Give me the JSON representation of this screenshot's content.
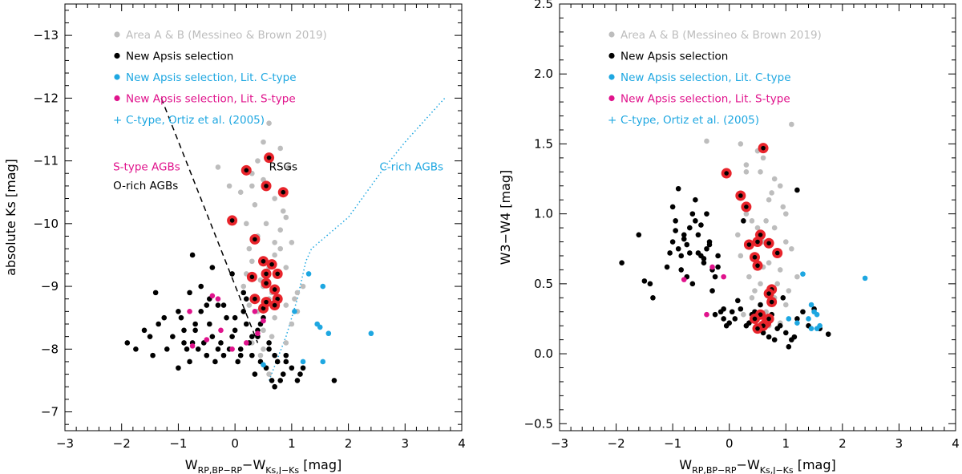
{
  "colors": {
    "area_ab": "#bdbdbd",
    "new": "#000000",
    "ctype": "#1ea7e1",
    "stype": "#e0138c",
    "highlight": "#e8242b"
  },
  "legend": [
    {
      "marker": "dot",
      "color": "#bdbdbd",
      "text": "Area A & B (Messineo & Brown 2019)"
    },
    {
      "marker": "dot",
      "color": "#000000",
      "text": "New Apsis selection"
    },
    {
      "marker": "dot",
      "color": "#1ea7e1",
      "text": "New Apsis selection, Lit. C-type"
    },
    {
      "marker": "dot",
      "color": "#e0138c",
      "text": "New Apsis selection, Lit. S-type"
    },
    {
      "marker": "plus",
      "color": "#1ea7e1",
      "text": "C-type, Ortiz et al. (2005)"
    }
  ],
  "chart_data": [
    {
      "type": "scatter",
      "id": "left",
      "xlabel_main": "W",
      "xlabel_sub1": "RP,BP−RP",
      "xlabel_mid": "−W",
      "xlabel_sub2": "Ks,J−Ks",
      "xlabel_unit": " [mag]",
      "ylabel": "absolute Ks [mag]",
      "xlim": [
        -3,
        4
      ],
      "ylim": [
        -6.7,
        -13.5
      ],
      "xticks": [
        -3,
        -2,
        -1,
        0,
        1,
        2,
        3,
        4
      ],
      "xtick_labels": [
        "−3",
        "−2",
        "−1",
        "0",
        "1",
        "2",
        "3",
        "4"
      ],
      "yticks": [
        -7,
        -8,
        -9,
        -10,
        -11,
        -12,
        -13
      ],
      "ytick_labels": [
        "−7",
        "−8",
        "−9",
        "−10",
        "−11",
        "−12",
        "−13"
      ],
      "annotations": [
        {
          "text": "S-type AGBs",
          "x": -2.15,
          "y": -10.85,
          "color": "#e0138c"
        },
        {
          "text": "O-rich AGBs",
          "x": -2.15,
          "y": -10.55,
          "color": "#000000"
        },
        {
          "text": "RSGs",
          "x": 0.6,
          "y": -10.85,
          "color": "#000000"
        },
        {
          "text": "C-rich AGBs",
          "x": 2.55,
          "y": -10.85,
          "color": "#1ea7e1"
        }
      ],
      "lines": [
        {
          "name": "o-rich-boundary",
          "style": "dashed",
          "color": "#000000",
          "x": [
            -1.3,
            0.4
          ],
          "y": [
            -12.0,
            -8.1
          ]
        },
        {
          "name": "c-rich-boundary",
          "style": "dotted",
          "color": "#1ea7e1",
          "x": [
            0.6,
            0.9,
            1.1,
            1.25,
            1.35,
            2.0,
            2.6,
            3.0,
            3.7
          ],
          "y": [
            -7.5,
            -8.2,
            -8.8,
            -9.4,
            -9.6,
            -10.1,
            -10.85,
            -11.3,
            -12.0
          ]
        }
      ],
      "series": [
        {
          "name": "Area A & B (Messineo & Brown 2019)",
          "color": "#bdbdbd",
          "x": [
            0.1,
            0.3,
            0.5,
            0.6,
            0.9,
            0.2,
            0.4,
            0.7,
            1.0,
            0.3,
            0.8,
            0.5,
            0.6,
            0.4,
            1.1,
            0.2,
            0.7,
            0.9,
            0.35,
            0.55,
            0.45,
            0.8,
            1.0,
            0.65,
            0.25,
            0.5,
            0.9,
            0.7,
            0.4,
            0.6,
            1.1,
            0.3,
            0.8,
            0.5,
            0.75,
            -0.3,
            -0.1,
            0.15,
            0.95,
            1.2,
            0.6,
            0.45,
            0.85,
            0.3,
            0.7,
            0.5,
            0.9,
            1.05,
            0.25,
            0.65
          ],
          "y": [
            -10.5,
            -10.8,
            -11.3,
            -11.6,
            -10.1,
            -10.0,
            -9.8,
            -10.4,
            -9.7,
            -9.4,
            -9.6,
            -9.0,
            -8.8,
            -8.6,
            -8.9,
            -9.2,
            -8.5,
            -8.7,
            -10.3,
            -10.0,
            -9.1,
            -9.9,
            -8.4,
            -8.2,
            -8.7,
            -8.3,
            -8.1,
            -9.5,
            -11.0,
            -9.3,
            -8.6,
            -10.6,
            -11.2,
            -8.0,
            -7.8,
            -10.9,
            -10.6,
            -9.0,
            -10.9,
            -9.0,
            -7.6,
            -7.9,
            -10.2,
            -8.1,
            -9.7,
            -10.7,
            -9.3,
            -8.8,
            -9.6,
            -8.9
          ]
        },
        {
          "name": "New Apsis selection",
          "color": "#000000",
          "x": [
            -1.9,
            -1.75,
            -1.6,
            -1.5,
            -1.45,
            -1.4,
            -1.35,
            -1.2,
            -1.1,
            -1.0,
            -0.95,
            -0.9,
            -0.85,
            -0.8,
            -0.75,
            -0.7,
            -0.65,
            -0.6,
            -0.55,
            -0.5,
            -0.45,
            -0.4,
            -0.35,
            -0.3,
            -0.25,
            -0.2,
            -0.15,
            -0.1,
            -0.05,
            0.0,
            0.05,
            0.1,
            0.15,
            0.2,
            0.25,
            0.3,
            0.35,
            0.4,
            0.45,
            0.5,
            0.55,
            0.6,
            0.65,
            0.7,
            0.75,
            0.8,
            0.85,
            0.9,
            1.0,
            1.1,
            1.2,
            -0.8,
            -0.6,
            -0.4,
            -0.2,
            0.0,
            0.2,
            0.4,
            -1.0,
            -0.7,
            -0.3,
            0.1,
            0.3,
            0.6,
            0.9,
            1.15,
            -0.5,
            -0.9,
            1.75,
            -1.25,
            -0.75,
            -0.45,
            -0.05,
            0.15,
            0.45,
            0.7
          ],
          "y": [
            -8.1,
            -8.0,
            -8.3,
            -8.2,
            -7.9,
            -8.9,
            -8.4,
            -8.0,
            -8.2,
            -7.7,
            -8.5,
            -8.1,
            -8.0,
            -7.8,
            -9.5,
            -8.3,
            -8.0,
            -8.6,
            -8.1,
            -7.9,
            -8.4,
            -8.2,
            -7.8,
            -8.7,
            -8.1,
            -7.9,
            -8.5,
            -8.0,
            -8.2,
            -8.3,
            -7.8,
            -8.0,
            -8.9,
            -8.4,
            -8.1,
            -7.9,
            -7.6,
            -8.2,
            -7.8,
            -8.5,
            -7.7,
            -8.0,
            -7.5,
            -7.4,
            -7.8,
            -7.5,
            -7.6,
            -7.8,
            -7.7,
            -7.5,
            -7.7,
            -8.9,
            -9.0,
            -9.3,
            -8.7,
            -8.5,
            -8.8,
            -8.3,
            -8.6,
            -8.4,
            -8.0,
            -7.9,
            -8.2,
            -8.1,
            -7.9,
            -7.6,
            -8.7,
            -8.3,
            -7.5,
            -8.5,
            -8.1,
            -8.8,
            -9.2,
            -8.6,
            -8.4,
            -7.9
          ]
        },
        {
          "name": "New Apsis selection, Lit. C-type",
          "color": "#1ea7e1",
          "x": [
            1.3,
            1.55,
            1.5,
            1.45,
            1.65,
            2.4,
            1.2,
            1.05,
            0.5,
            1.55
          ],
          "y": [
            -9.2,
            -9.0,
            -8.35,
            -8.4,
            -8.25,
            -8.25,
            -7.8,
            -8.6,
            -7.75,
            -7.8
          ]
        },
        {
          "name": "New Apsis selection, Lit. S-type",
          "color": "#e0138c",
          "x": [
            -0.4,
            -0.3,
            -0.8,
            -0.25,
            0.2,
            0.4,
            -0.05,
            -0.5,
            0.35,
            0.5,
            -0.75
          ],
          "y": [
            -8.85,
            -8.8,
            -8.6,
            -8.3,
            -8.1,
            -8.25,
            -8.0,
            -8.15,
            -8.6,
            -8.45,
            -8.05
          ]
        },
        {
          "name": "highlighted",
          "color": "#e8242b",
          "ring": true,
          "x": [
            0.6,
            0.2,
            0.55,
            0.85,
            -0.05,
            0.35,
            0.5,
            0.55,
            0.65,
            0.75,
            0.3,
            0.55,
            0.35,
            0.75,
            0.5,
            0.7,
            0.7,
            0.55
          ],
          "y": [
            -11.05,
            -10.85,
            -10.6,
            -10.5,
            -10.05,
            -9.75,
            -9.4,
            -9.2,
            -9.35,
            -9.2,
            -9.15,
            -9.05,
            -8.8,
            -8.8,
            -8.65,
            -8.7,
            -8.95,
            -8.75
          ]
        }
      ]
    },
    {
      "type": "scatter",
      "id": "right",
      "xlabel_main": "W",
      "xlabel_sub1": "RP,BP−RP",
      "xlabel_mid": "−W",
      "xlabel_sub2": "Ks,J−Ks",
      "xlabel_unit": " [mag]",
      "ylabel": "W3−W4 [mag]",
      "xlim": [
        -3,
        4
      ],
      "ylim": [
        -0.55,
        2.5
      ],
      "xticks": [
        -3,
        -2,
        -1,
        0,
        1,
        2,
        3,
        4
      ],
      "xtick_labels": [
        "−3",
        "−2",
        "−1",
        "0",
        "1",
        "2",
        "3",
        "4"
      ],
      "yticks": [
        -0.5,
        0.0,
        0.5,
        1.0,
        1.5,
        2.0,
        2.5
      ],
      "ytick_labels": [
        "−0.5",
        "0.0",
        "0.5",
        "1.0",
        "1.5",
        "2.0",
        "2.5"
      ],
      "series": [
        {
          "name": "Area A & B (Messineo & Brown 2019)",
          "color": "#bdbdbd",
          "x": [
            -0.4,
            0.2,
            0.5,
            0.6,
            0.9,
            0.3,
            0.7,
            1.0,
            0.4,
            0.8,
            0.5,
            0.6,
            1.1,
            0.2,
            0.7,
            0.9,
            0.35,
            0.55,
            0.45,
            0.8,
            1.0,
            0.65,
            0.25,
            0.5,
            0.9,
            0.7,
            0.4,
            0.6,
            1.1,
            0.3,
            0.8,
            0.5,
            0.75,
            0.15,
            0.95,
            1.2,
            0.6,
            0.45,
            0.85,
            0.3,
            1.05,
            0.65,
            1.0,
            0.55
          ],
          "y": [
            1.52,
            1.5,
            1.45,
            1.4,
            1.2,
            1.3,
            1.1,
            1.0,
            0.95,
            0.9,
            0.85,
            0.8,
            0.75,
            0.7,
            0.65,
            0.6,
            0.55,
            0.5,
            0.45,
            0.4,
            0.35,
            0.3,
            0.28,
            0.25,
            0.22,
            0.2,
            0.4,
            0.15,
            1.64,
            1.0,
            1.25,
            0.9,
            1.15,
            0.85,
            1.05,
            0.55,
            0.62,
            0.7,
            0.5,
            1.35,
            0.45,
            0.95,
            0.8,
            1.3
          ]
        },
        {
          "name": "New Apsis selection",
          "color": "#000000",
          "x": [
            -1.9,
            -1.6,
            -1.5,
            -1.4,
            -1.35,
            -1.1,
            -1.0,
            -0.95,
            -0.9,
            -0.85,
            -0.8,
            -0.75,
            -0.7,
            -0.65,
            -0.6,
            -0.55,
            -0.5,
            -0.45,
            -0.4,
            -0.35,
            -0.3,
            -0.25,
            -0.2,
            -0.15,
            -0.1,
            -0.05,
            0.0,
            -1.0,
            -0.9,
            -0.8,
            -0.7,
            -0.6,
            -0.5,
            -0.4,
            -0.3,
            -0.85,
            -0.75,
            -0.65,
            -0.55,
            -0.45,
            -0.35,
            -1.05,
            -0.95,
            -0.2,
            0.05,
            0.1,
            0.2,
            0.3,
            0.4,
            0.5,
            0.6,
            0.7,
            0.8,
            0.9,
            1.0,
            1.1,
            1.2,
            1.3,
            1.4,
            1.5,
            1.6,
            1.75,
            0.55,
            0.75,
            0.95,
            1.05,
            0.15,
            0.35,
            0.45,
            0.65,
            0.85,
            1.15,
            -0.25,
            -0.1,
            1.2,
            0.25
          ],
          "y": [
            0.65,
            0.85,
            0.52,
            0.5,
            0.4,
            0.62,
            0.8,
            0.95,
            0.75,
            0.7,
            0.85,
            0.78,
            0.9,
            1.0,
            0.95,
            0.85,
            0.7,
            0.65,
            0.75,
            0.8,
            0.6,
            0.55,
            0.7,
            0.3,
            0.25,
            0.2,
            0.22,
            1.05,
            1.18,
            0.82,
            0.72,
            1.1,
            0.92,
            1.0,
            0.45,
            0.6,
            0.55,
            0.5,
            0.72,
            0.68,
            0.78,
            0.72,
            0.88,
            0.62,
            0.3,
            0.25,
            0.32,
            0.2,
            0.28,
            0.18,
            0.15,
            0.12,
            0.1,
            0.2,
            0.15,
            0.1,
            0.25,
            0.3,
            0.2,
            0.32,
            0.18,
            0.14,
            0.35,
            0.28,
            0.4,
            0.05,
            0.38,
            0.22,
            0.3,
            0.25,
            0.18,
            0.12,
            0.28,
            0.32,
            1.17,
            0.95
          ]
        },
        {
          "name": "New Apsis selection, Lit. C-type",
          "color": "#1ea7e1",
          "x": [
            1.3,
            1.45,
            1.5,
            1.55,
            1.4,
            2.4,
            1.2,
            1.05,
            1.6,
            1.55,
            1.45
          ],
          "y": [
            0.57,
            0.35,
            0.3,
            0.28,
            0.25,
            0.54,
            0.22,
            0.25,
            0.2,
            0.18,
            0.18
          ]
        },
        {
          "name": "New Apsis selection, Lit. S-type",
          "color": "#e0138c",
          "x": [
            -0.4,
            -0.1,
            -0.3,
            -0.8,
            0.55
          ],
          "y": [
            0.28,
            0.55,
            0.62,
            0.53,
            0.2
          ]
        },
        {
          "name": "highlighted",
          "color": "#e8242b",
          "ring": true,
          "x": [
            0.6,
            -0.05,
            0.2,
            0.3,
            0.55,
            0.35,
            0.5,
            0.7,
            0.45,
            0.85,
            0.5,
            0.75,
            0.7,
            0.75,
            0.55,
            0.45,
            0.65,
            0.6,
            0.5,
            0.7
          ],
          "y": [
            1.47,
            1.29,
            1.13,
            1.05,
            0.85,
            0.78,
            0.8,
            0.79,
            0.69,
            0.72,
            0.63,
            0.46,
            0.43,
            0.37,
            0.28,
            0.25,
            0.22,
            0.2,
            0.18,
            0.25
          ]
        }
      ]
    }
  ]
}
